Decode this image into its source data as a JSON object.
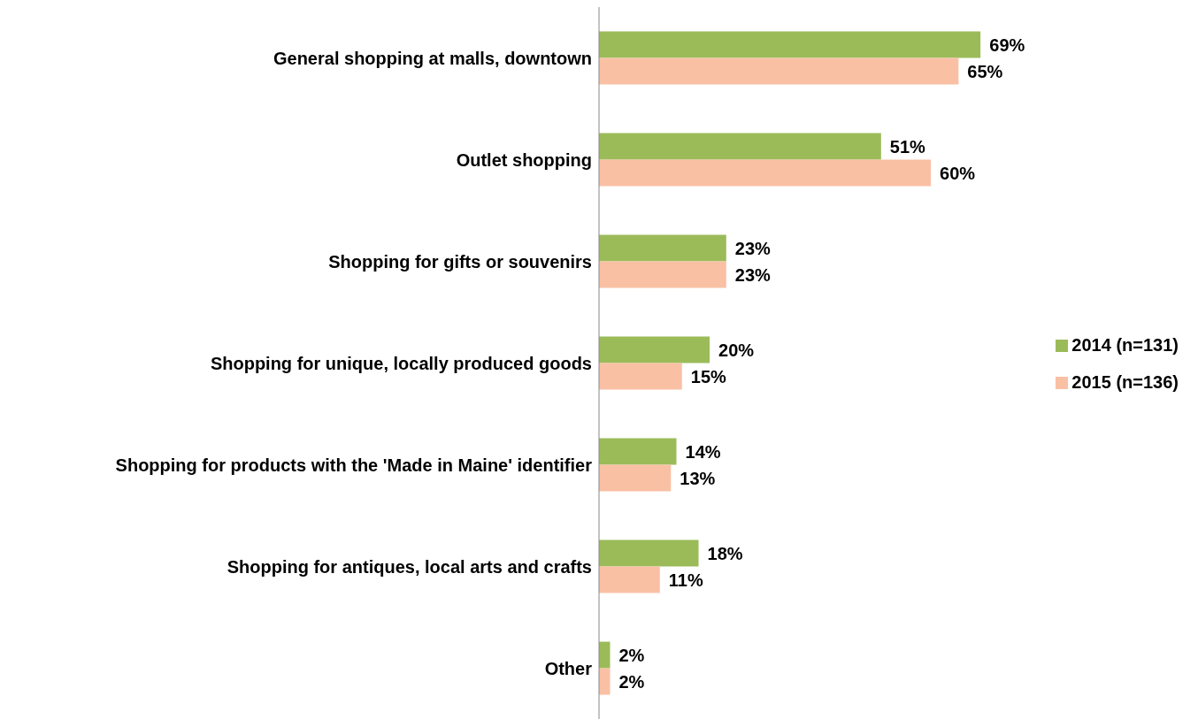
{
  "chart_data": {
    "type": "bar",
    "orientation": "horizontal",
    "legend": "right",
    "grid": false,
    "categories": [
      "General shopping at malls, downtown",
      "Outlet shopping",
      "Shopping for gifts or souvenirs",
      "Shopping for unique, locally produced goods",
      "Shopping for products with the 'Made in Maine' identifier",
      "Shopping for antiques, local arts and crafts",
      "Other"
    ],
    "series": [
      {
        "name": "2014 (n=131)",
        "color": "#9bbb59",
        "values": [
          69,
          51,
          23,
          20,
          14,
          18,
          2
        ],
        "value_labels": [
          "69%",
          "51%",
          "23%",
          "20%",
          "14%",
          "18%",
          "2%"
        ]
      },
      {
        "name": "2015 (n=136)",
        "color": "#fac0a4",
        "values": [
          65,
          60,
          23,
          15,
          13,
          11,
          2
        ],
        "value_labels": [
          "65%",
          "60%",
          "23%",
          "15%",
          "13%",
          "11%",
          "2%"
        ]
      }
    ]
  }
}
